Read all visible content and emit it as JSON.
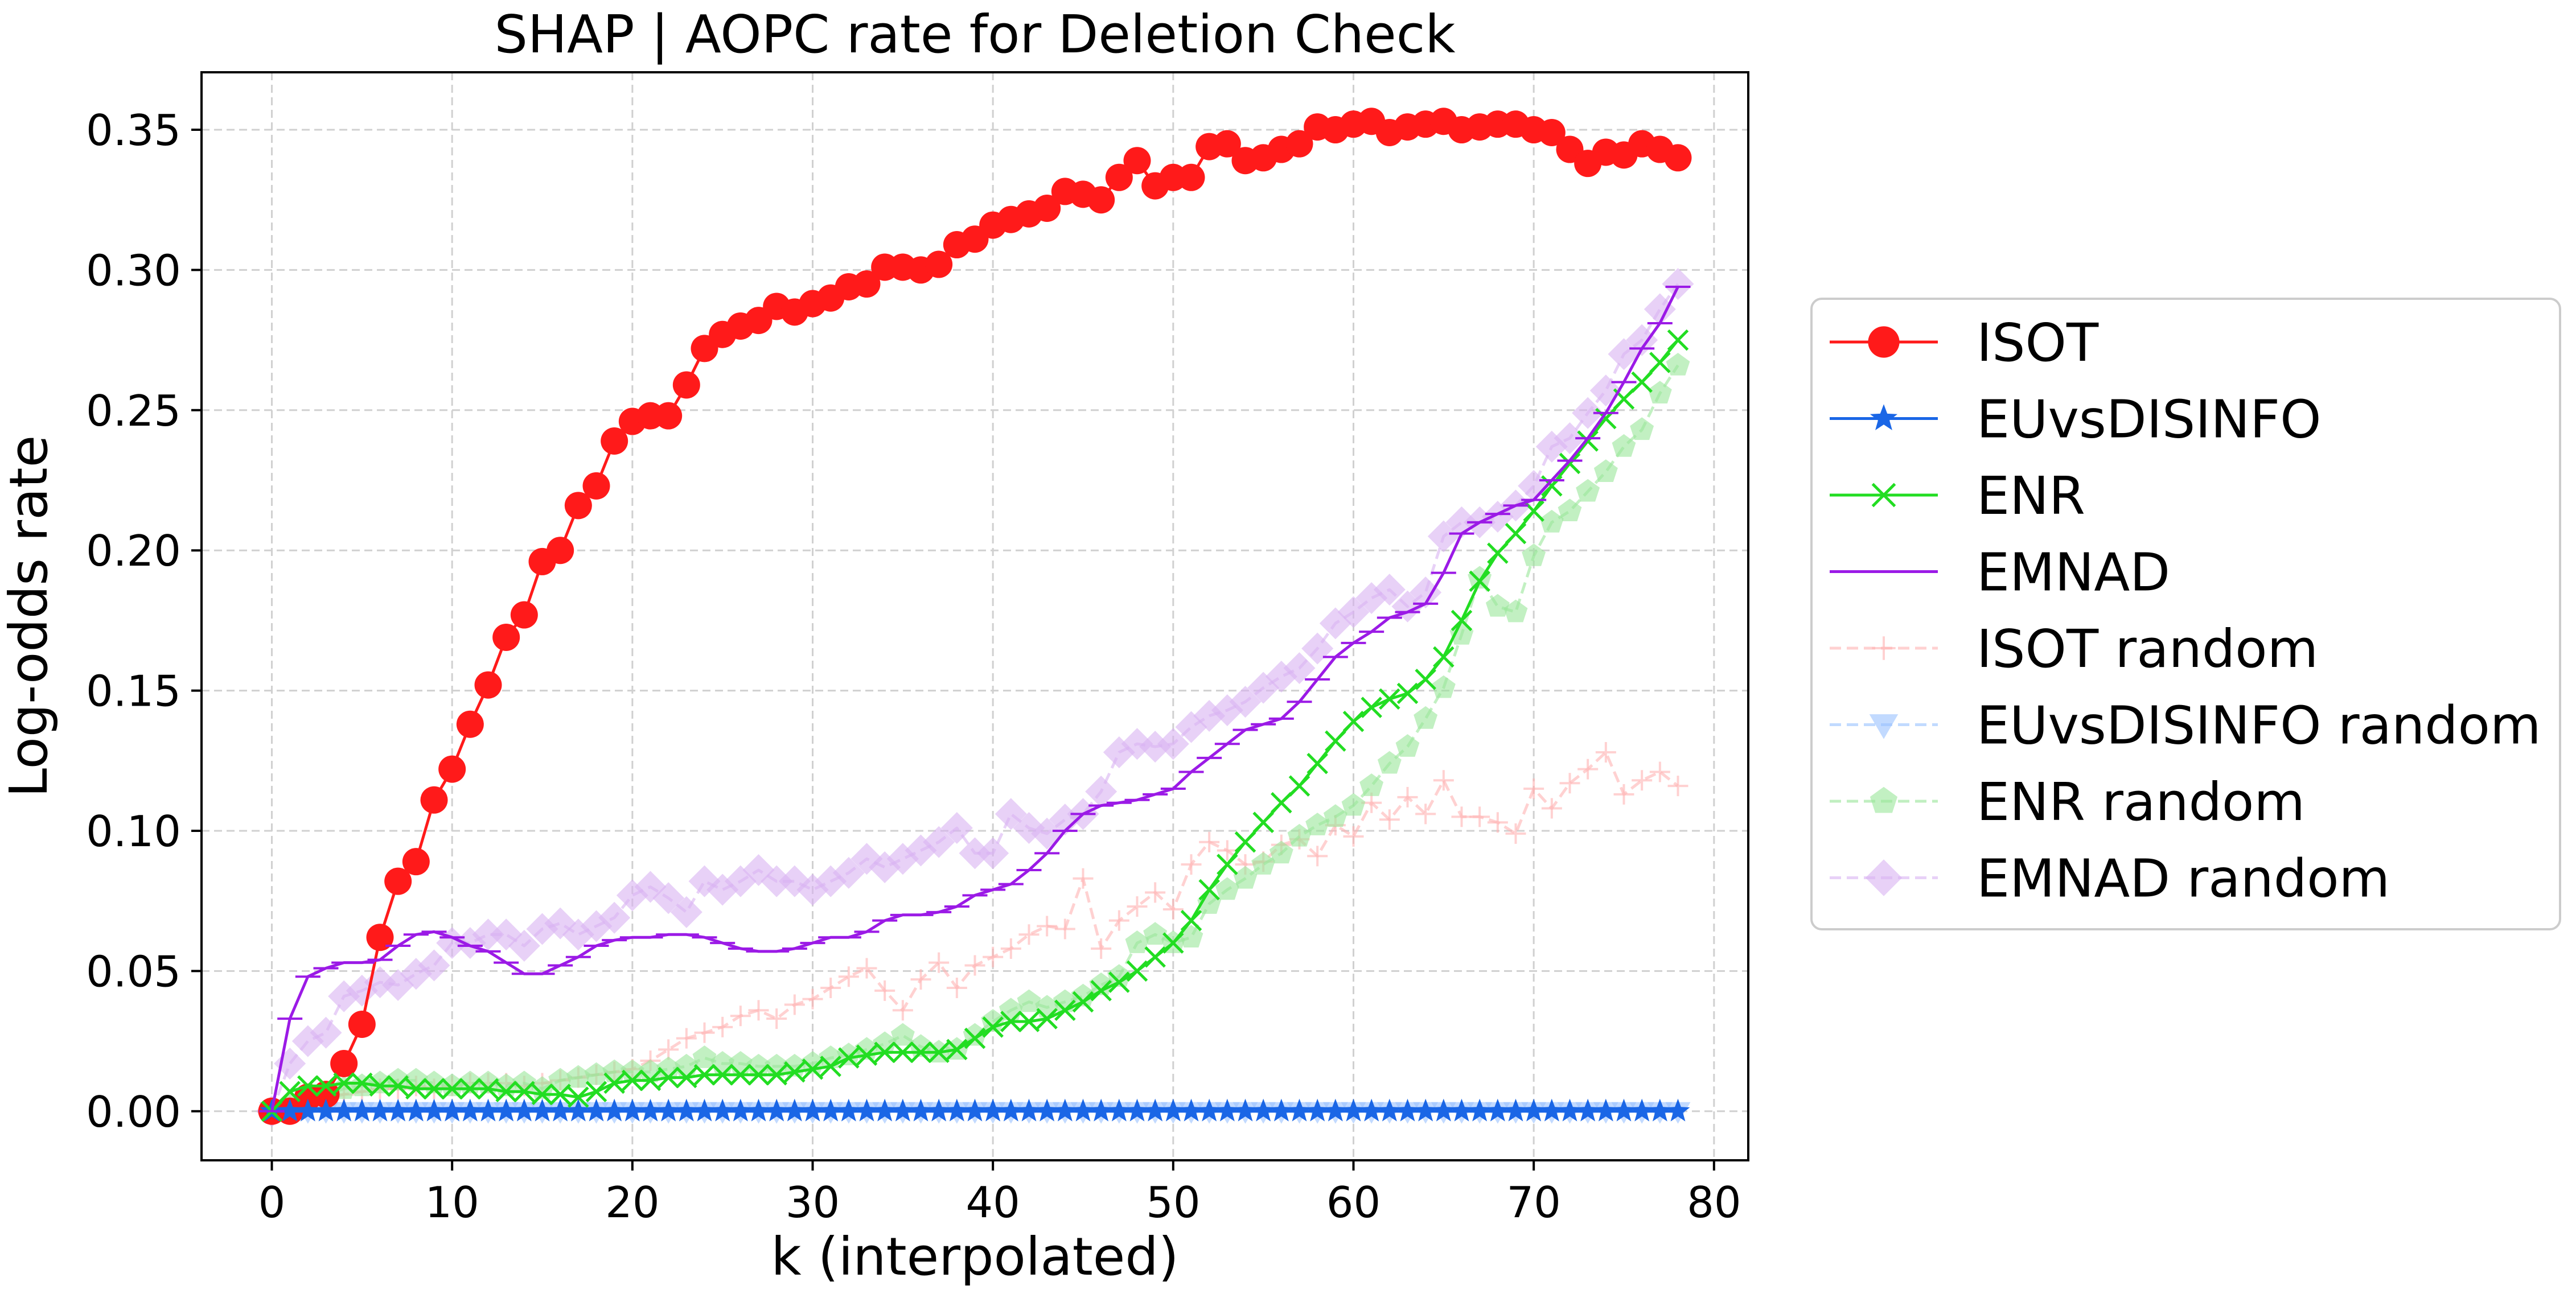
{
  "chart_data": {
    "type": "line",
    "title": "SHAP | AOPC rate for Deletion Check",
    "xlabel": "k (interpolated)",
    "ylabel": "Log-odds rate",
    "xlim": [
      -3.9,
      81.9
    ],
    "ylim": [
      -0.0175,
      0.3705
    ],
    "x_ticks": [
      0,
      10,
      20,
      30,
      40,
      50,
      60,
      70,
      80
    ],
    "x_tick_labels": [
      "0",
      "10",
      "20",
      "30",
      "40",
      "50",
      "60",
      "70",
      "80"
    ],
    "y_ticks": [
      0.0,
      0.05,
      0.1,
      0.15,
      0.2,
      0.25,
      0.3,
      0.35
    ],
    "y_tick_labels": [
      "0.00",
      "0.05",
      "0.10",
      "0.15",
      "0.20",
      "0.25",
      "0.30",
      "0.35"
    ],
    "grid": true,
    "legend_position": "outside right",
    "x": [
      0,
      1,
      2,
      3,
      4,
      5,
      6,
      7,
      8,
      9,
      10,
      11,
      12,
      13,
      14,
      15,
      16,
      17,
      18,
      19,
      20,
      21,
      22,
      23,
      24,
      25,
      26,
      27,
      28,
      29,
      30,
      31,
      32,
      33,
      34,
      35,
      36,
      37,
      38,
      39,
      40,
      41,
      42,
      43,
      44,
      45,
      46,
      47,
      48,
      49,
      50,
      51,
      52,
      53,
      54,
      55,
      56,
      57,
      58,
      59,
      60,
      61,
      62,
      63,
      64,
      65,
      66,
      67,
      68,
      69,
      70,
      71,
      72,
      73,
      74,
      75,
      76,
      77,
      78
    ],
    "series": [
      {
        "name": "ISOT",
        "color": "#ff1a1a",
        "marker": "circle",
        "linestyle": "solid",
        "alpha": 1.0,
        "values": [
          0.0,
          0.0,
          0.005,
          0.006,
          0.017,
          0.031,
          0.062,
          0.082,
          0.089,
          0.111,
          0.122,
          0.138,
          0.152,
          0.169,
          0.177,
          0.196,
          0.2,
          0.216,
          0.223,
          0.239,
          0.246,
          0.248,
          0.248,
          0.259,
          0.272,
          0.277,
          0.28,
          0.282,
          0.287,
          0.285,
          0.288,
          0.29,
          0.294,
          0.295,
          0.301,
          0.301,
          0.3,
          0.302,
          0.309,
          0.311,
          0.316,
          0.318,
          0.32,
          0.322,
          0.328,
          0.327,
          0.325,
          0.333,
          0.339,
          0.33,
          0.333,
          0.333,
          0.344,
          0.345,
          0.339,
          0.34,
          0.343,
          0.345,
          0.351,
          0.35,
          0.352,
          0.353,
          0.349,
          0.351,
          0.352,
          0.353,
          0.35,
          0.351,
          0.352,
          0.352,
          0.35,
          0.349,
          0.343,
          0.338,
          0.342,
          0.341,
          0.345,
          0.343,
          0.34
        ]
      },
      {
        "name": "EUvsDISINFO",
        "color": "#1a66e6",
        "marker": "star",
        "linestyle": "solid",
        "alpha": 1.0,
        "values": [
          0,
          0,
          0,
          0,
          0,
          0,
          0,
          0,
          0,
          0,
          0,
          0,
          0,
          0,
          0,
          0,
          0,
          0,
          0,
          0,
          0,
          0,
          0,
          0,
          0,
          0,
          0,
          0,
          0,
          0,
          0,
          0,
          0,
          0,
          0,
          0,
          0,
          0,
          0,
          0,
          0,
          0,
          0,
          0,
          0,
          0,
          0,
          0,
          0,
          0,
          0,
          0,
          0,
          0,
          0,
          0,
          0,
          0,
          0,
          0,
          0,
          0,
          0,
          0,
          0,
          0,
          0,
          0,
          0,
          0,
          0,
          0,
          0,
          0,
          0,
          0,
          0,
          0,
          0
        ]
      },
      {
        "name": "ENR",
        "color": "#22dd22",
        "marker": "x",
        "linestyle": "solid",
        "alpha": 1.0,
        "values": [
          0.0,
          0.007,
          0.009,
          0.009,
          0.01,
          0.01,
          0.009,
          0.009,
          0.008,
          0.008,
          0.008,
          0.008,
          0.008,
          0.007,
          0.007,
          0.006,
          0.006,
          0.005,
          0.007,
          0.01,
          0.011,
          0.011,
          0.012,
          0.012,
          0.013,
          0.013,
          0.013,
          0.013,
          0.013,
          0.014,
          0.015,
          0.016,
          0.019,
          0.02,
          0.021,
          0.021,
          0.021,
          0.021,
          0.022,
          0.026,
          0.03,
          0.032,
          0.032,
          0.033,
          0.036,
          0.039,
          0.043,
          0.046,
          0.05,
          0.055,
          0.06,
          0.068,
          0.079,
          0.088,
          0.096,
          0.103,
          0.11,
          0.116,
          0.124,
          0.132,
          0.139,
          0.144,
          0.147,
          0.149,
          0.154,
          0.162,
          0.175,
          0.189,
          0.199,
          0.206,
          0.214,
          0.223,
          0.231,
          0.239,
          0.247,
          0.254,
          0.26,
          0.267,
          0.275
        ]
      },
      {
        "name": "EMNAD",
        "color": "#9b1ae6",
        "marker": "hline",
        "linestyle": "solid",
        "alpha": 1.0,
        "values": [
          0.0,
          0.033,
          0.048,
          0.051,
          0.053,
          0.053,
          0.054,
          0.059,
          0.063,
          0.064,
          0.062,
          0.059,
          0.057,
          0.053,
          0.049,
          0.049,
          0.052,
          0.055,
          0.059,
          0.061,
          0.062,
          0.062,
          0.063,
          0.063,
          0.062,
          0.06,
          0.058,
          0.057,
          0.057,
          0.058,
          0.06,
          0.062,
          0.062,
          0.064,
          0.068,
          0.07,
          0.07,
          0.071,
          0.073,
          0.077,
          0.079,
          0.081,
          0.086,
          0.092,
          0.1,
          0.106,
          0.109,
          0.11,
          0.111,
          0.113,
          0.115,
          0.121,
          0.126,
          0.131,
          0.136,
          0.138,
          0.14,
          0.146,
          0.154,
          0.162,
          0.167,
          0.171,
          0.176,
          0.178,
          0.181,
          0.192,
          0.206,
          0.21,
          0.213,
          0.216,
          0.218,
          0.225,
          0.232,
          0.24,
          0.249,
          0.26,
          0.272,
          0.281,
          0.294
        ]
      },
      {
        "name": "ISOT random",
        "color": "#ffb3b3",
        "marker": "plus",
        "linestyle": "dashed",
        "alpha": 0.6,
        "values": [
          0.0,
          0.002,
          0.004,
          0.004,
          0.006,
          0.007,
          0.008,
          0.008,
          0.009,
          0.008,
          0.009,
          0.01,
          0.01,
          0.01,
          0.009,
          0.01,
          0.011,
          0.012,
          0.013,
          0.014,
          0.015,
          0.018,
          0.022,
          0.026,
          0.028,
          0.03,
          0.034,
          0.036,
          0.033,
          0.038,
          0.04,
          0.044,
          0.048,
          0.051,
          0.043,
          0.036,
          0.047,
          0.053,
          0.044,
          0.052,
          0.055,
          0.058,
          0.063,
          0.066,
          0.065,
          0.083,
          0.058,
          0.068,
          0.073,
          0.078,
          0.072,
          0.088,
          0.096,
          0.093,
          0.088,
          0.089,
          0.095,
          0.097,
          0.091,
          0.102,
          0.098,
          0.11,
          0.104,
          0.112,
          0.106,
          0.118,
          0.105,
          0.105,
          0.103,
          0.099,
          0.115,
          0.108,
          0.117,
          0.122,
          0.128,
          0.113,
          0.118,
          0.121,
          0.116
        ]
      },
      {
        "name": "EUvsDISINFO random",
        "color": "#99c2ff",
        "marker": "triangle-down",
        "linestyle": "dashed",
        "alpha": 0.6,
        "values": [
          0,
          0,
          0,
          0,
          0,
          0,
          0,
          0,
          0,
          0,
          0,
          0,
          0,
          0,
          0,
          0,
          0,
          0,
          0,
          0,
          0,
          0,
          0,
          0,
          0,
          0,
          0,
          0,
          0,
          0,
          0,
          0,
          0,
          0,
          0,
          0,
          0,
          0,
          0,
          0,
          0,
          0,
          0,
          0,
          0,
          0,
          0,
          0,
          0,
          0,
          0,
          0,
          0,
          0,
          0,
          0,
          0,
          0,
          0,
          0,
          0,
          0,
          0,
          0,
          0,
          0,
          0,
          0,
          0,
          0,
          0,
          0,
          0,
          0,
          0,
          0,
          0,
          0,
          0
        ]
      },
      {
        "name": "ENR random",
        "color": "#99e699",
        "marker": "pentagon",
        "linestyle": "dashed",
        "alpha": 0.6,
        "values": [
          0.0,
          0.002,
          0.004,
          0.006,
          0.008,
          0.009,
          0.01,
          0.011,
          0.011,
          0.01,
          0.009,
          0.01,
          0.01,
          0.009,
          0.01,
          0.008,
          0.011,
          0.012,
          0.013,
          0.014,
          0.014,
          0.014,
          0.015,
          0.016,
          0.019,
          0.017,
          0.017,
          0.016,
          0.016,
          0.016,
          0.017,
          0.019,
          0.02,
          0.022,
          0.024,
          0.027,
          0.023,
          0.021,
          0.022,
          0.027,
          0.032,
          0.036,
          0.039,
          0.037,
          0.039,
          0.041,
          0.045,
          0.048,
          0.06,
          0.063,
          0.06,
          0.062,
          0.074,
          0.079,
          0.083,
          0.088,
          0.092,
          0.098,
          0.102,
          0.105,
          0.109,
          0.116,
          0.124,
          0.13,
          0.14,
          0.151,
          0.17,
          0.19,
          0.18,
          0.178,
          0.198,
          0.21,
          0.214,
          0.221,
          0.228,
          0.237,
          0.243,
          0.256,
          0.266
        ]
      },
      {
        "name": "EMNAD random",
        "color": "#d9b3f2",
        "marker": "diamond",
        "linestyle": "dashed",
        "alpha": 0.6,
        "values": [
          0.0,
          0.017,
          0.025,
          0.028,
          0.041,
          0.043,
          0.046,
          0.045,
          0.049,
          0.052,
          0.06,
          0.06,
          0.063,
          0.063,
          0.059,
          0.065,
          0.067,
          0.063,
          0.066,
          0.069,
          0.077,
          0.08,
          0.076,
          0.071,
          0.082,
          0.079,
          0.082,
          0.086,
          0.082,
          0.082,
          0.079,
          0.082,
          0.085,
          0.09,
          0.087,
          0.09,
          0.093,
          0.096,
          0.101,
          0.092,
          0.092,
          0.106,
          0.101,
          0.099,
          0.104,
          0.106,
          0.114,
          0.128,
          0.131,
          0.13,
          0.131,
          0.137,
          0.141,
          0.143,
          0.146,
          0.151,
          0.155,
          0.158,
          0.165,
          0.174,
          0.178,
          0.183,
          0.186,
          0.18,
          0.185,
          0.205,
          0.21,
          0.21,
          0.212,
          0.216,
          0.223,
          0.237,
          0.24,
          0.249,
          0.257,
          0.27,
          0.275,
          0.286,
          0.295
        ]
      }
    ]
  }
}
